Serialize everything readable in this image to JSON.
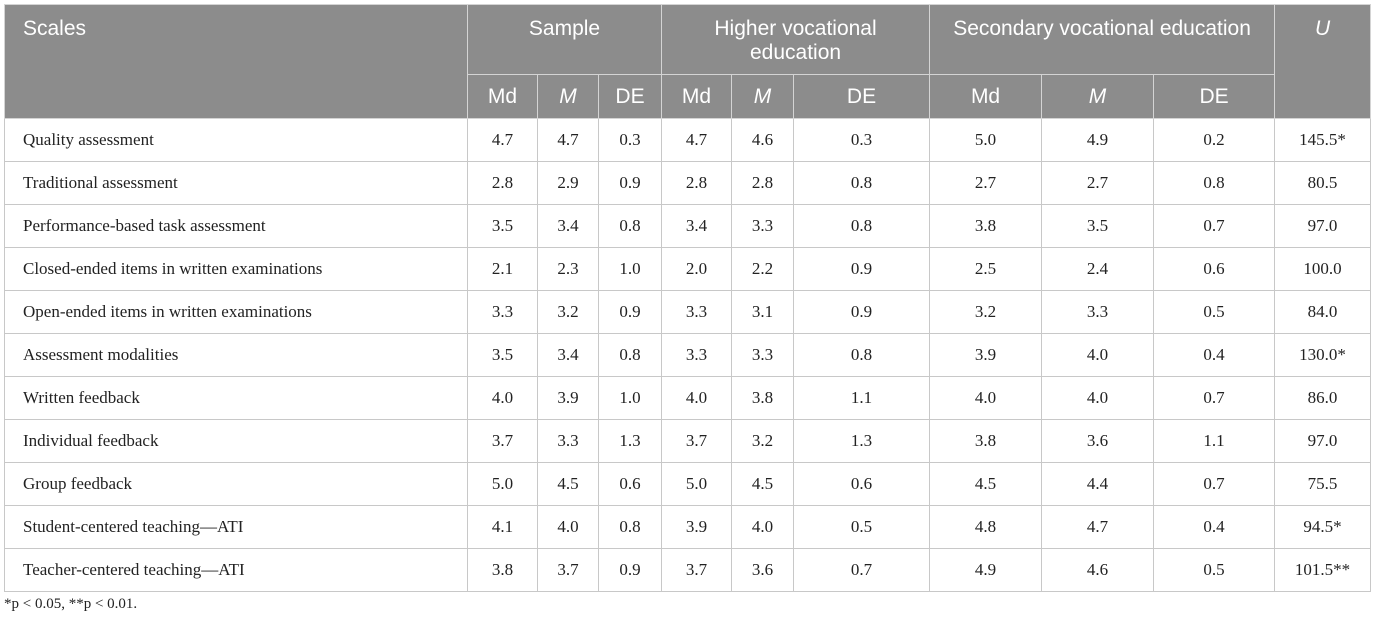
{
  "table": {
    "header": {
      "scales": "Scales",
      "groups": [
        "Sample",
        "Higher vocational education",
        "Secondary vocational education"
      ],
      "u": "U",
      "subheaders": [
        "Md",
        "M",
        "DE",
        "Md",
        "M",
        "DE",
        "Md",
        "M",
        "DE"
      ]
    },
    "rows": [
      [
        "Quality assessment",
        "4.7",
        "4.7",
        "0.3",
        "4.7",
        "4.6",
        "0.3",
        "5.0",
        "4.9",
        "0.2",
        "145.5*"
      ],
      [
        "Traditional assessment",
        "2.8",
        "2.9",
        "0.9",
        "2.8",
        "2.8",
        "0.8",
        "2.7",
        "2.7",
        "0.8",
        "80.5"
      ],
      [
        "Performance-based task assessment",
        "3.5",
        "3.4",
        "0.8",
        "3.4",
        "3.3",
        "0.8",
        "3.8",
        "3.5",
        "0.7",
        "97.0"
      ],
      [
        "Closed-ended items in written examinations",
        "2.1",
        "2.3",
        "1.0",
        "2.0",
        "2.2",
        "0.9",
        "2.5",
        "2.4",
        "0.6",
        "100.0"
      ],
      [
        "Open-ended items in written examinations",
        "3.3",
        "3.2",
        "0.9",
        "3.3",
        "3.1",
        "0.9",
        "3.2",
        "3.3",
        "0.5",
        "84.0"
      ],
      [
        "Assessment modalities",
        "3.5",
        "3.4",
        "0.8",
        "3.3",
        "3.3",
        "0.8",
        "3.9",
        "4.0",
        "0.4",
        "130.0*"
      ],
      [
        "Written feedback",
        "4.0",
        "3.9",
        "1.0",
        "4.0",
        "3.8",
        "1.1",
        "4.0",
        "4.0",
        "0.7",
        "86.0"
      ],
      [
        "Individual feedback",
        "3.7",
        "3.3",
        "1.3",
        "3.7",
        "3.2",
        "1.3",
        "3.8",
        "3.6",
        "1.1",
        "97.0"
      ],
      [
        "Group feedback",
        "5.0",
        "4.5",
        "0.6",
        "5.0",
        "4.5",
        "0.6",
        "4.5",
        "4.4",
        "0.7",
        "75.5"
      ],
      [
        "Student-centered teaching—ATI",
        "4.1",
        "4.0",
        "0.8",
        "3.9",
        "4.0",
        "0.5",
        "4.8",
        "4.7",
        "0.4",
        "94.5*"
      ],
      [
        "Teacher-centered teaching—ATI",
        "3.8",
        "3.7",
        "0.9",
        "3.7",
        "3.6",
        "0.7",
        "4.9",
        "4.6",
        "0.5",
        "101.5**"
      ]
    ]
  },
  "footnote": "*p < 0.05, **p < 0.01."
}
